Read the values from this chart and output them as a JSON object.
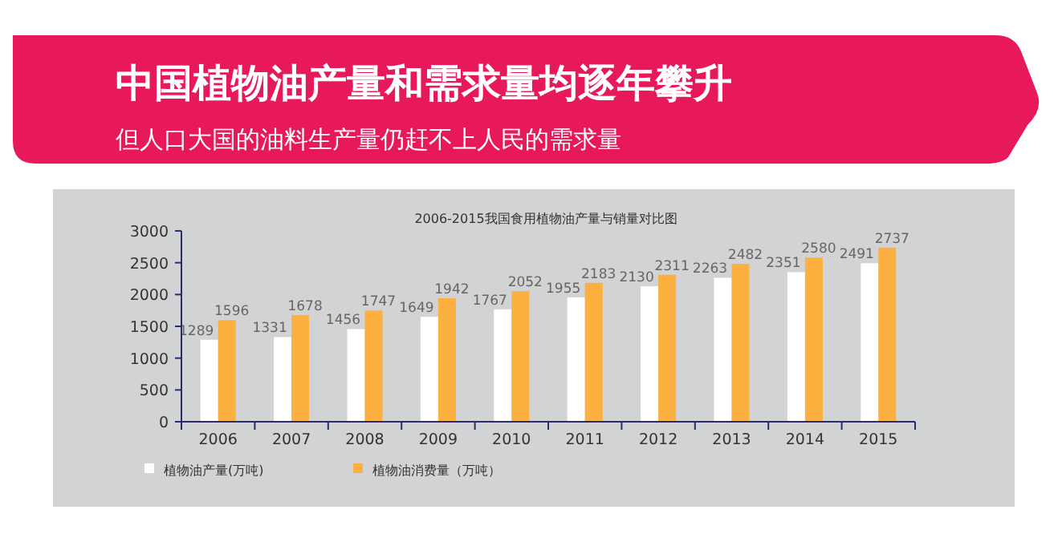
{
  "chart_data": {
    "type": "bar",
    "title": "中国植物油产量和需求量均逐年攀升",
    "subtitle": "但人口大国的油料生产量仍赶不上人民的需求量",
    "annotations": [
      "2006-2015我国食用植物油产量与销量对比图"
    ],
    "categories": [
      "2006",
      "2007",
      "2008",
      "2009",
      "2010",
      "2011",
      "2012",
      "2013",
      "2014",
      "2015"
    ],
    "series": [
      {
        "name": "植物油产量(万吨)",
        "color": "#ffffff",
        "values": [
          1289,
          1331,
          1456,
          1649,
          1767,
          1955,
          2130,
          2263,
          2351,
          2491
        ]
      },
      {
        "name": "植物油消费量（万吨）",
        "color": "#fbb040",
        "values": [
          1596,
          1678,
          1747,
          1942,
          2052,
          2183,
          2311,
          2482,
          2580,
          2737
        ]
      }
    ],
    "ylim": [
      0,
      3000
    ],
    "yticks": [
      0,
      500,
      1000,
      1500,
      2000,
      2500,
      3000
    ],
    "data_labels": true,
    "grid": false,
    "legend": "bottom left"
  }
}
